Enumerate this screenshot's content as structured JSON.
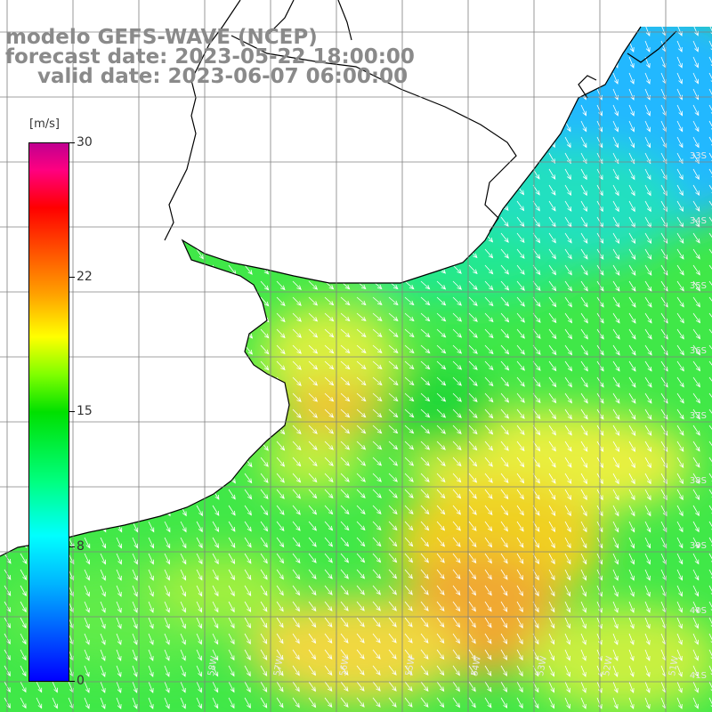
{
  "header": {
    "model": "modelo GEFS-WAVE (NCEP)",
    "forecast": "forecast date: 2023-05-22 18:00:00",
    "valid": "valid date: 2023-06-07 06:00:00"
  },
  "colorbar": {
    "unit": "[m/s]",
    "ticks": [
      "30",
      "22",
      "15",
      "8",
      "0"
    ],
    "tick_values": [
      30,
      22,
      15,
      8,
      0
    ],
    "range": [
      0,
      30
    ]
  },
  "map": {
    "lon_range": [
      -61,
      -50.2
    ],
    "lat_range": [
      -41.1,
      -30.2
    ],
    "lat_labels": [
      "33S",
      "34S",
      "35S",
      "36S",
      "37S",
      "38S",
      "39S",
      "40S",
      "41S"
    ],
    "lon_labels": [
      "58W",
      "57W",
      "56W",
      "55W",
      "54W",
      "53W",
      "52W",
      "51W"
    ],
    "wind_direction": "from north-west",
    "colors": {
      "coastline": "#000000",
      "grid": "#808080",
      "arrows": "#ffffff"
    }
  },
  "chart_data": {
    "type": "heatmap",
    "variable": "wind speed",
    "unit": "m/s",
    "approx_wind_field": [
      {
        "region": "northeast offshore near 33S 51W",
        "speed": 9
      },
      {
        "region": "Rio de la Plata estuary",
        "speed": 13
      },
      {
        "region": "Buenos Aires coast 36S 57W",
        "speed": 16
      },
      {
        "region": "near 37S 56W",
        "speed": 18
      },
      {
        "region": "offshore 38S 54W",
        "speed": 16
      },
      {
        "region": "offshore 40S 54W",
        "speed": 18
      },
      {
        "region": "southwest 40S 60W",
        "speed": 13
      }
    ]
  }
}
